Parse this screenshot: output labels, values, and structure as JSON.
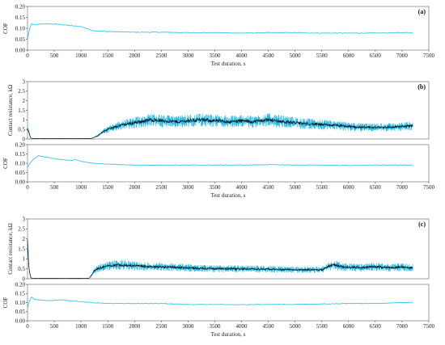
{
  "colors": {
    "cof": "#3cc3e6",
    "resistance_band": "#22b8e6",
    "resistance_mean": "#0a0a0a",
    "frame": "#888888"
  },
  "chart_data": [
    {
      "id": "a-cof",
      "panel": "(a)",
      "type": "line",
      "ylabel": "COF",
      "xlabel": "Test duration, s",
      "xlim": [
        0,
        7500
      ],
      "ylim": [
        0,
        0.2
      ],
      "x_ticks": [
        0,
        500,
        1000,
        1500,
        2000,
        2500,
        3000,
        3500,
        4000,
        4500,
        5000,
        5500,
        6000,
        6500,
        7000,
        7500
      ],
      "y_ticks": [
        "0.00",
        "0.05",
        "0.10",
        "0.15",
        "0.20"
      ],
      "series": [
        {
          "x": [
            0,
            40,
            80,
            150,
            250,
            400,
            600,
            800,
            1000,
            1100,
            1200,
            1500,
            2000,
            2500,
            3000,
            3500,
            4000,
            4500,
            5000,
            5500,
            6000,
            6500,
            7000,
            7200
          ],
          "y": [
            0.05,
            0.1,
            0.12,
            0.115,
            0.12,
            0.12,
            0.118,
            0.112,
            0.108,
            0.1,
            0.09,
            0.085,
            0.082,
            0.082,
            0.08,
            0.08,
            0.078,
            0.08,
            0.08,
            0.078,
            0.078,
            0.078,
            0.08,
            0.08
          ]
        }
      ]
    },
    {
      "id": "b-resistance",
      "panel": "(b)",
      "type": "line",
      "ylabel": "Contact resistance, kΩ",
      "xlim": [
        0,
        7500
      ],
      "ylim": [
        0,
        3
      ],
      "y_ticks": [
        "0",
        "0.5",
        "1",
        "1.5",
        "2",
        "2.5",
        "3"
      ],
      "series": [
        {
          "x": [
            0,
            30,
            60,
            100,
            200,
            500,
            1000,
            1200,
            1300,
            1400,
            1500,
            1600,
            1800,
            2000,
            2200,
            2300,
            2500,
            2800,
            3000,
            3200,
            3500,
            3800,
            4000,
            4200,
            4500,
            4800,
            5000,
            5200,
            5500,
            5800,
            6000,
            6300,
            6500,
            6800,
            7000,
            7200
          ],
          "y": [
            0.6,
            0.3,
            0.05,
            0.02,
            0.02,
            0.02,
            0.02,
            0.03,
            0.15,
            0.35,
            0.5,
            0.6,
            0.75,
            0.85,
            0.95,
            1.0,
            0.95,
            0.9,
            0.95,
            1.0,
            0.95,
            0.9,
            0.95,
            0.9,
            1.0,
            0.9,
            0.85,
            0.8,
            0.75,
            0.7,
            0.65,
            0.6,
            0.6,
            0.62,
            0.65,
            0.7
          ]
        }
      ]
    },
    {
      "id": "b-cof",
      "type": "line",
      "ylabel": "COF",
      "xlabel": "Test duration, s",
      "xlim": [
        0,
        7500
      ],
      "ylim": [
        0,
        0.2
      ],
      "x_ticks": [
        0,
        500,
        1000,
        1500,
        2000,
        2500,
        3000,
        3500,
        4000,
        4500,
        5000,
        5500,
        6000,
        6500,
        7000,
        7500
      ],
      "y_ticks": [
        "0.00",
        "0.05",
        "0.10",
        "0.15",
        "0.20"
      ],
      "series": [
        {
          "x": [
            0,
            50,
            100,
            150,
            200,
            400,
            600,
            800,
            900,
            1000,
            1200,
            1500,
            2000,
            2500,
            3000,
            3500,
            4000,
            4500,
            5000,
            5500,
            6000,
            6500,
            7000,
            7200
          ],
          "y": [
            0.08,
            0.1,
            0.12,
            0.13,
            0.14,
            0.13,
            0.12,
            0.115,
            0.12,
            0.11,
            0.1,
            0.095,
            0.09,
            0.09,
            0.09,
            0.09,
            0.09,
            0.092,
            0.09,
            0.09,
            0.088,
            0.09,
            0.09,
            0.09
          ]
        }
      ]
    },
    {
      "id": "c-resistance",
      "panel": "(c)",
      "type": "line",
      "ylabel": "Contact resistance, kΩ",
      "xlim": [
        0,
        7500
      ],
      "ylim": [
        0,
        3
      ],
      "y_ticks": [
        "0",
        "0.5",
        "1",
        "1.5",
        "2",
        "2.5",
        "3"
      ],
      "series": [
        {
          "x": [
            0,
            30,
            60,
            100,
            200,
            500,
            1000,
            1150,
            1200,
            1250,
            1300,
            1500,
            1700,
            2000,
            2300,
            2500,
            3000,
            3500,
            4000,
            4500,
            5000,
            5500,
            5700,
            5900,
            6200,
            6500,
            6800,
            7000,
            7200
          ],
          "y": [
            1.8,
            0.5,
            0.05,
            0.02,
            0.02,
            0.02,
            0.02,
            0.02,
            0.2,
            0.4,
            0.5,
            0.65,
            0.7,
            0.65,
            0.6,
            0.6,
            0.55,
            0.5,
            0.5,
            0.48,
            0.45,
            0.45,
            0.7,
            0.6,
            0.55,
            0.6,
            0.55,
            0.6,
            0.55
          ]
        }
      ]
    },
    {
      "id": "c-cof",
      "type": "line",
      "ylabel": "COF",
      "xlabel": "Test duration, s",
      "xlim": [
        0,
        7500
      ],
      "ylim": [
        0,
        0.2
      ],
      "x_ticks": [
        0,
        500,
        1000,
        1500,
        2000,
        2500,
        3000,
        3500,
        4000,
        4500,
        5000,
        5500,
        6000,
        6500,
        7000,
        7500
      ],
      "y_ticks": [
        "0.00",
        "0.05",
        "0.10",
        "0.15",
        "0.20"
      ],
      "series": [
        {
          "x": [
            0,
            40,
            80,
            120,
            200,
            400,
            600,
            800,
            1000,
            1200,
            1500,
            2000,
            2500,
            3000,
            3500,
            4000,
            4500,
            5000,
            5500,
            6000,
            6500,
            7000,
            7200
          ],
          "y": [
            0.07,
            0.11,
            0.13,
            0.12,
            0.115,
            0.11,
            0.115,
            0.11,
            0.105,
            0.1,
            0.095,
            0.095,
            0.095,
            0.09,
            0.09,
            0.088,
            0.09,
            0.09,
            0.092,
            0.095,
            0.095,
            0.1,
            0.1
          ]
        }
      ]
    }
  ]
}
